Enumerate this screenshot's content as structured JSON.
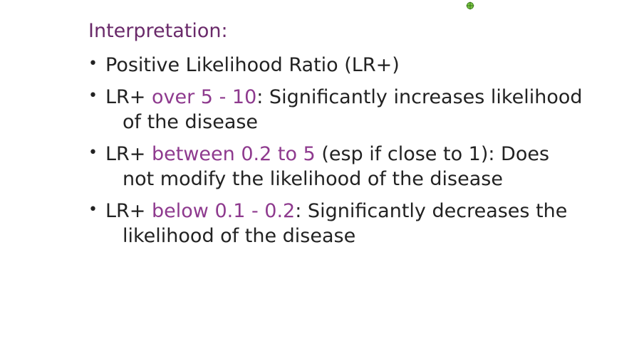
{
  "heading": "Interpretation:",
  "bullets": [
    {
      "pre": "Positive Likelihood Ratio (LR+)",
      "highlight": "",
      "post": "",
      "line2": ""
    },
    {
      "pre": "LR+ ",
      "highlight": "over 5 - 10",
      "post": ": Significantly increases likelihood",
      "line2": "of the disease"
    },
    {
      "pre": "LR+ ",
      "highlight": "between 0.2 to 5",
      "post": " (esp if close to 1): Does",
      "line2": "not modify the likelihood of the disease"
    },
    {
      "pre": "LR+ ",
      "highlight": "below 0.1 - 0.2",
      "post": ": Significantly decreases the",
      "line2": "likelihood of the disease"
    }
  ],
  "colors": {
    "heading": "#6a2a6a",
    "highlight": "#8e3a8e",
    "text": "#222222",
    "handle": "#7ac943"
  },
  "icons": {
    "bullet": "bullet-dot-icon",
    "handle": "rotation-handle-icon"
  }
}
